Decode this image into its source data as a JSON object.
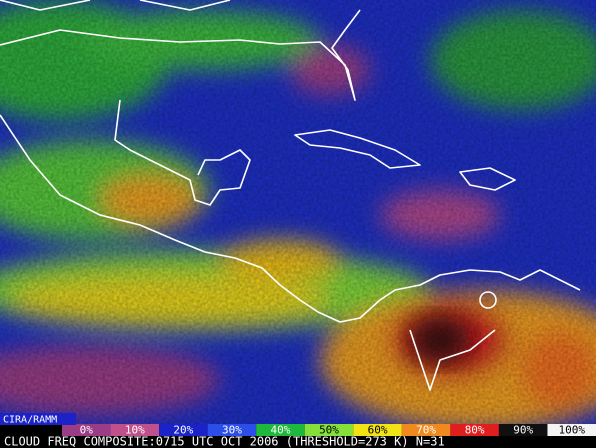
{
  "map": {
    "credit": "CIRA/RAMM",
    "legend": [
      {
        "label": "0%",
        "color": "#9a3c86"
      },
      {
        "label": "10%",
        "color": "#c0508c"
      },
      {
        "label": "20%",
        "color": "#1a22c8"
      },
      {
        "label": "30%",
        "color": "#2c4ee8"
      },
      {
        "label": "40%",
        "color": "#1eb83c"
      },
      {
        "label": "50%",
        "color": "#86e03a"
      },
      {
        "label": "60%",
        "color": "#f2e414"
      },
      {
        "label": "70%",
        "color": "#f08a1e"
      },
      {
        "label": "80%",
        "color": "#e01e1e"
      },
      {
        "label": "90%",
        "color": "#101010"
      },
      {
        "label": "100%",
        "color": "#f4f4f4"
      }
    ],
    "caption": "CLOUD FREQ COMPOSITE:0715 UTC OCT 2006 (THRESHOLD=273 K) N=31"
  }
}
